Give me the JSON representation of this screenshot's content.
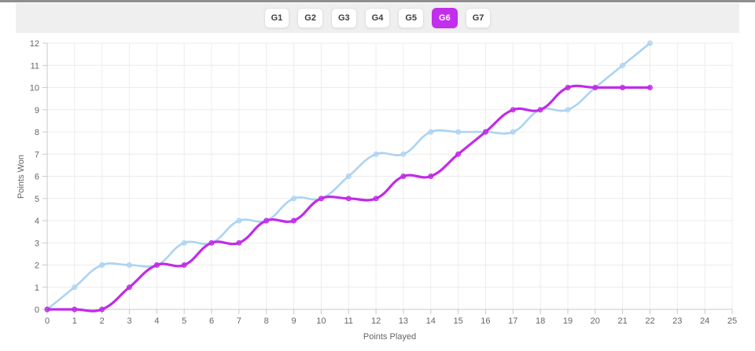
{
  "toolbar": {
    "buttons": [
      {
        "label": "G1",
        "selected": false
      },
      {
        "label": "G2",
        "selected": false
      },
      {
        "label": "G3",
        "selected": false
      },
      {
        "label": "G4",
        "selected": false
      },
      {
        "label": "G5",
        "selected": false
      },
      {
        "label": "G6",
        "selected": true
      },
      {
        "label": "G7",
        "selected": false
      }
    ]
  },
  "colors": {
    "accent_magenta": "#C22FEC",
    "series_blue": "#ABD3F4",
    "series_magenta": "#C12BE9"
  },
  "chart_data": {
    "type": "line",
    "title": "",
    "xlabel": "Points Played",
    "ylabel": "Points Won",
    "xlim": [
      0,
      25
    ],
    "ylim": [
      0,
      12
    ],
    "x_ticks": [
      0,
      1,
      2,
      3,
      4,
      5,
      6,
      7,
      8,
      9,
      10,
      11,
      12,
      13,
      14,
      15,
      16,
      17,
      18,
      19,
      20,
      21,
      22,
      23,
      24,
      25
    ],
    "y_ticks": [
      0,
      1,
      2,
      3,
      4,
      5,
      6,
      7,
      8,
      9,
      10,
      11,
      12
    ],
    "grid": true,
    "legend": "none",
    "x": [
      0,
      1,
      2,
      3,
      4,
      5,
      6,
      7,
      8,
      9,
      10,
      11,
      12,
      13,
      14,
      15,
      16,
      17,
      18,
      19,
      20,
      21,
      22
    ],
    "series": [
      {
        "name": "series-blue",
        "color": "#ABD3F4",
        "width": 2.6,
        "values": [
          0,
          1,
          2,
          2,
          2,
          3,
          3,
          4,
          4,
          5,
          5,
          6,
          7,
          7,
          8,
          8,
          8,
          8,
          9,
          9,
          10,
          11,
          12
        ]
      },
      {
        "name": "series-magenta",
        "color": "#C12BE9",
        "width": 3.2,
        "values": [
          0,
          0,
          0,
          1,
          2,
          2,
          3,
          3,
          4,
          4,
          5,
          5,
          5,
          6,
          6,
          7,
          8,
          9,
          9,
          10,
          10,
          10,
          10
        ]
      }
    ]
  }
}
